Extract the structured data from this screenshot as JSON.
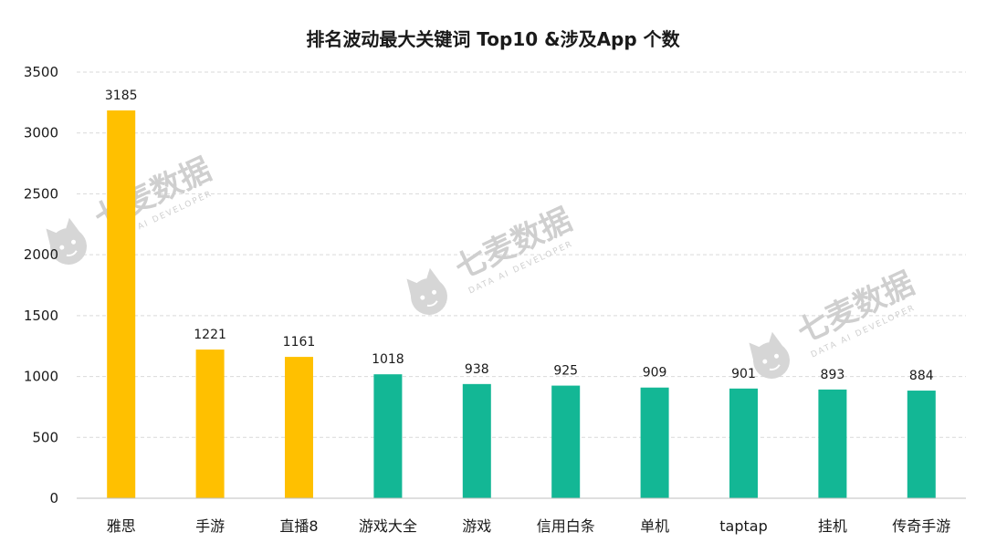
{
  "chart_data": {
    "type": "bar",
    "title": "排名波动最大关键词 Top10 &涉及App 个数",
    "xlabel": "",
    "ylabel": "",
    "categories": [
      "雅思",
      "手游",
      "直播8",
      "游戏大全",
      "游戏",
      "信用白条",
      "单机",
      "taptap",
      "挂机",
      "传奇手游"
    ],
    "values": [
      3185,
      1221,
      1161,
      1018,
      938,
      925,
      909,
      901,
      893,
      884
    ],
    "ylim": [
      0,
      3500
    ],
    "yticks": [
      0,
      500,
      1000,
      1500,
      2000,
      2500,
      3000,
      3500
    ],
    "grid": true,
    "highlight_count": 3,
    "colors": {
      "highlight": "#FFC000",
      "normal": "#13B795"
    }
  },
  "watermark": {
    "text": "七麦数据",
    "subtext": "DATA AI DEVELOPER",
    "icon": "cat-logo-icon"
  }
}
